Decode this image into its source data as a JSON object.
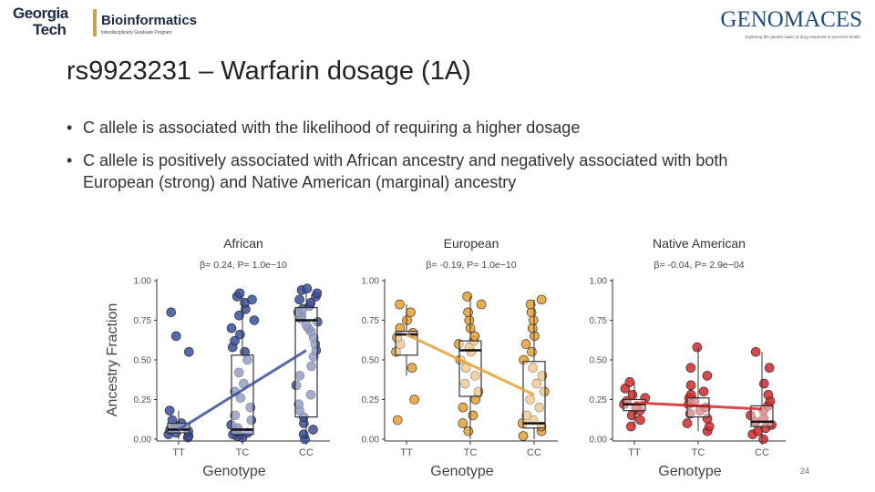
{
  "header": {
    "left_logo": {
      "line1": "Georgia",
      "line2": "Tech",
      "program": "Bioinformatics",
      "program_subtitle": "Interdisciplinary Graduate Program"
    },
    "right_logo": {
      "name": "GENOMACES",
      "tagline": "Exploring the genetic basis of drug response in precision health"
    }
  },
  "slide": {
    "title": "rs9923231  – Warfarin dosage (1A)",
    "bullets": [
      "C allele is associated with the likelihood of requiring a higher dosage",
      "C allele is positively associated with African ancestry and negatively associated with both European (strong) and Native American (marginal) ancestry"
    ],
    "bullet_glyph": "•",
    "slide_number": "24"
  },
  "chart_data": [
    {
      "type": "box",
      "title": "African",
      "subtitle": "β= 0.24,  P= 1.0e−10",
      "xlabel": "Genotype",
      "ylabel": "Ancestry Fraction",
      "categories": [
        "TT",
        "TC",
        "CC"
      ],
      "yticks": [
        "0.00",
        "0.25",
        "0.50",
        "0.75",
        "1.00"
      ],
      "ylim": [
        0,
        1
      ],
      "color": "#3b4f9c",
      "boxes": [
        {
          "q1": 0.04,
          "median": 0.06,
          "q3": 0.1,
          "lo": 0.0,
          "hi": 0.18
        },
        {
          "q1": 0.03,
          "median": 0.06,
          "q3": 0.53,
          "lo": 0.0,
          "hi": 0.9
        },
        {
          "q1": 0.14,
          "median": 0.75,
          "q3": 0.83,
          "lo": 0.0,
          "hi": 0.92
        }
      ],
      "trend": [
        0.06,
        0.56
      ],
      "points": [
        [
          0.01,
          0.02,
          0.03,
          0.04,
          0.05,
          0.06,
          0.07,
          0.08,
          0.1,
          0.12,
          0.18,
          0.55,
          0.65,
          0.8
        ],
        [
          0.01,
          0.02,
          0.03,
          0.04,
          0.05,
          0.07,
          0.09,
          0.12,
          0.15,
          0.2,
          0.26,
          0.3,
          0.35,
          0.42,
          0.5,
          0.55,
          0.58,
          0.62,
          0.66,
          0.7,
          0.75,
          0.78,
          0.82,
          0.86,
          0.88,
          0.9,
          0.92
        ],
        [
          0.0,
          0.03,
          0.06,
          0.1,
          0.14,
          0.18,
          0.22,
          0.28,
          0.34,
          0.4,
          0.46,
          0.52,
          0.56,
          0.6,
          0.64,
          0.68,
          0.7,
          0.72,
          0.74,
          0.76,
          0.78,
          0.8,
          0.82,
          0.84,
          0.86,
          0.88,
          0.9,
          0.92,
          0.94,
          0.95
        ]
      ]
    },
    {
      "type": "box",
      "title": "European",
      "subtitle": "β= -0.19,  P= 1.0e−10",
      "xlabel": "Genotype",
      "ylabel": "",
      "categories": [
        "TT",
        "TC",
        "CC"
      ],
      "yticks": [
        "0.00",
        "0.25",
        "0.50",
        "0.75",
        "1.00"
      ],
      "ylim": [
        0,
        1
      ],
      "color": "#e8a030",
      "boxes": [
        {
          "q1": 0.53,
          "median": 0.66,
          "q3": 0.68,
          "lo": 0.4,
          "hi": 0.85
        },
        {
          "q1": 0.27,
          "median": 0.56,
          "q3": 0.62,
          "lo": 0.0,
          "hi": 0.9
        },
        {
          "q1": 0.07,
          "median": 0.1,
          "q3": 0.49,
          "lo": 0.0,
          "hi": 0.88
        }
      ],
      "trend": [
        0.66,
        0.28
      ],
      "points": [
        [
          0.12,
          0.25,
          0.45,
          0.55,
          0.6,
          0.64,
          0.67,
          0.7,
          0.75,
          0.8,
          0.85
        ],
        [
          0.05,
          0.1,
          0.15,
          0.2,
          0.25,
          0.3,
          0.35,
          0.4,
          0.45,
          0.5,
          0.55,
          0.58,
          0.6,
          0.62,
          0.65,
          0.7,
          0.75,
          0.8,
          0.85,
          0.9
        ],
        [
          0.02,
          0.05,
          0.08,
          0.1,
          0.12,
          0.15,
          0.2,
          0.25,
          0.3,
          0.35,
          0.4,
          0.45,
          0.5,
          0.55,
          0.6,
          0.65,
          0.7,
          0.75,
          0.8,
          0.85,
          0.88
        ]
      ]
    },
    {
      "type": "box",
      "title": "Native American",
      "subtitle": "β= -0.04,  P= 2.9e−04",
      "xlabel": "Genotype",
      "ylabel": "",
      "categories": [
        "TT",
        "TC",
        "CC"
      ],
      "yticks": [
        "0.00",
        "0.25",
        "0.50",
        "0.75",
        "1.00"
      ],
      "ylim": [
        0,
        1
      ],
      "color": "#d42828",
      "boxes": [
        {
          "q1": 0.18,
          "median": 0.22,
          "q3": 0.25,
          "lo": 0.08,
          "hi": 0.36
        },
        {
          "q1": 0.14,
          "median": 0.21,
          "q3": 0.26,
          "lo": 0.05,
          "hi": 0.58
        },
        {
          "q1": 0.08,
          "median": 0.11,
          "q3": 0.21,
          "lo": 0.0,
          "hi": 0.55
        }
      ],
      "trend": [
        0.23,
        0.19
      ],
      "points": [
        [
          0.08,
          0.12,
          0.15,
          0.18,
          0.2,
          0.22,
          0.24,
          0.26,
          0.28,
          0.32,
          0.36
        ],
        [
          0.05,
          0.08,
          0.1,
          0.13,
          0.16,
          0.18,
          0.2,
          0.22,
          0.24,
          0.26,
          0.28,
          0.3,
          0.34,
          0.4,
          0.45,
          0.58
        ],
        [
          0.0,
          0.03,
          0.05,
          0.07,
          0.09,
          0.11,
          0.13,
          0.15,
          0.18,
          0.21,
          0.24,
          0.28,
          0.35,
          0.45,
          0.55
        ]
      ]
    }
  ]
}
